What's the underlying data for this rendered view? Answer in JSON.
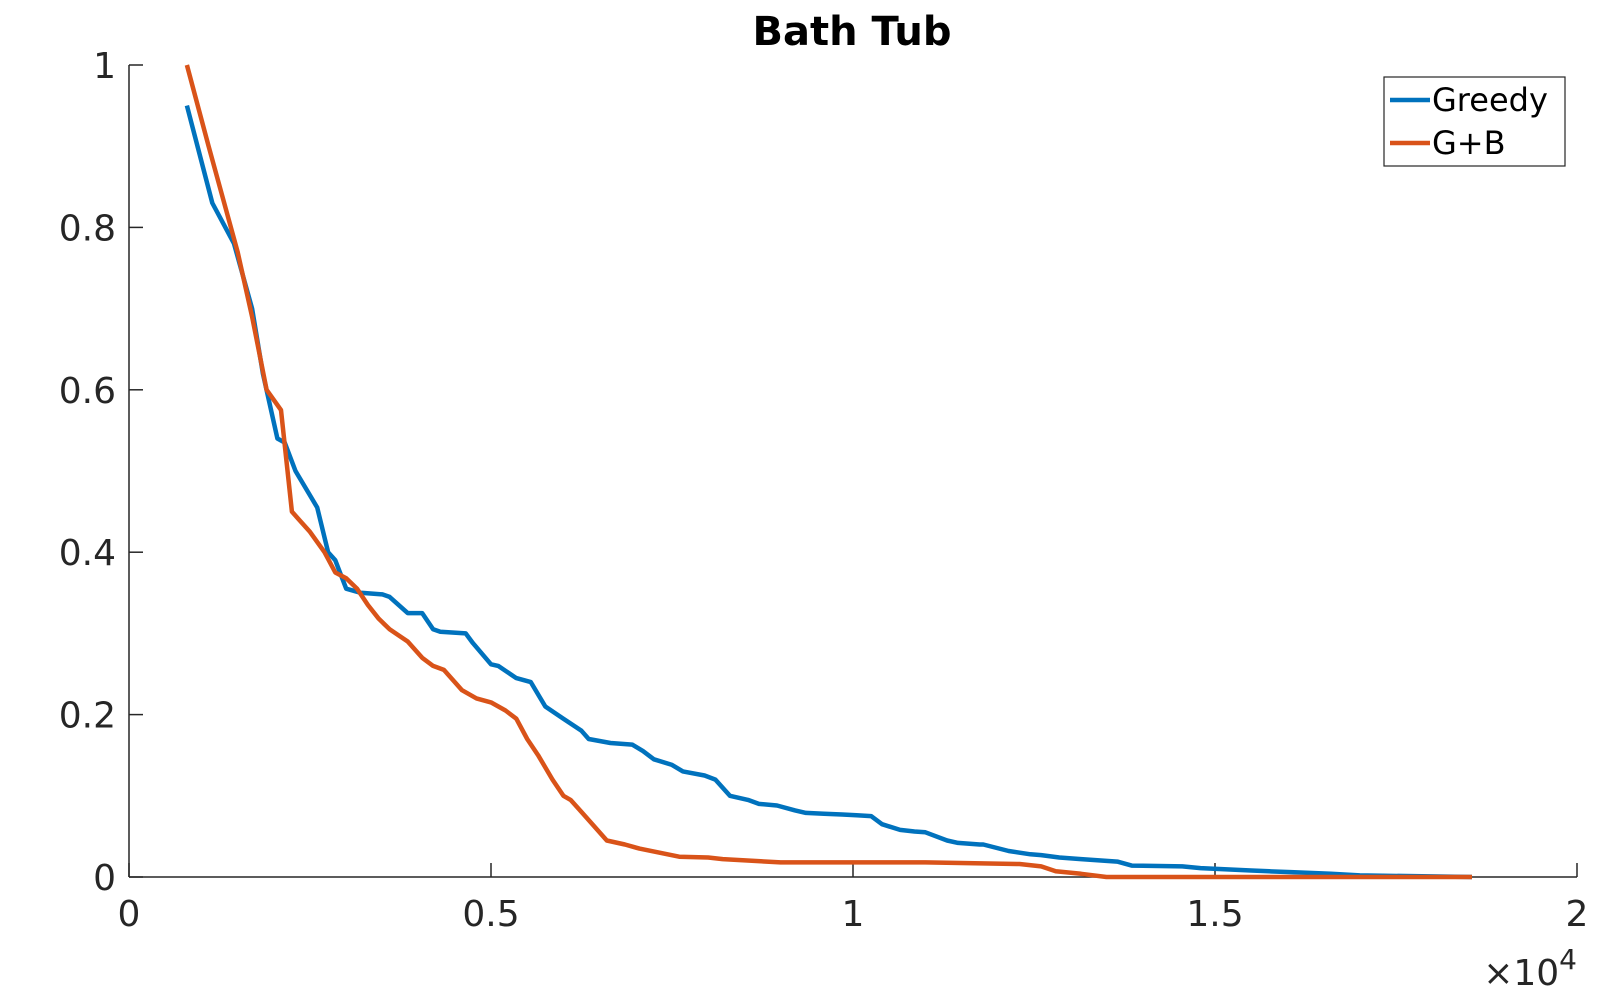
{
  "chart_data": {
    "type": "line",
    "title": "Bath Tub",
    "xlabel": "",
    "ylabel": "",
    "xlim": [
      0,
      20000
    ],
    "ylim": [
      0,
      1
    ],
    "x_ticks": [
      0,
      5000,
      10000,
      15000,
      20000
    ],
    "x_tick_labels": [
      "0",
      "0.5",
      "1",
      "1.5",
      "2"
    ],
    "x_exponent_label": "×10",
    "x_exponent_power": "4",
    "y_ticks": [
      0,
      0.2,
      0.4,
      0.6,
      0.8,
      1
    ],
    "y_tick_labels": [
      "0",
      "0.2",
      "0.4",
      "0.6",
      "0.8",
      "1"
    ],
    "grid": false,
    "legend_position": "top-right",
    "series": [
      {
        "name": "Greedy",
        "color": "#0072BD",
        "x": [
          800,
          1150,
          1450,
          1700,
          1850,
          2050,
          2150,
          2300,
          2500,
          2600,
          2750,
          2850,
          3000,
          3200,
          3500,
          3600,
          3700,
          3850,
          4050,
          4200,
          4300,
          4650,
          4750,
          5000,
          5100,
          5350,
          5550,
          5750,
          6000,
          6250,
          6350,
          6650,
          6950,
          7100,
          7250,
          7500,
          7650,
          7950,
          8100,
          8300,
          8550,
          8700,
          8950,
          9200,
          9350,
          9600,
          9850,
          10050,
          10250,
          10400,
          10650,
          10850,
          11000,
          11300,
          11450,
          11750,
          11800,
          12150,
          12450,
          12600,
          12850,
          13150,
          13650,
          13850,
          14550,
          14800,
          15500,
          15750,
          16050,
          16600,
          17000,
          18550
        ],
        "y": [
          0.95,
          0.83,
          0.78,
          0.7,
          0.62,
          0.54,
          0.535,
          0.5,
          0.47,
          0.455,
          0.4,
          0.39,
          0.355,
          0.35,
          0.348,
          0.345,
          0.337,
          0.325,
          0.325,
          0.305,
          0.302,
          0.3,
          0.288,
          0.262,
          0.26,
          0.245,
          0.24,
          0.21,
          0.195,
          0.18,
          0.17,
          0.165,
          0.163,
          0.155,
          0.145,
          0.138,
          0.13,
          0.125,
          0.12,
          0.1,
          0.095,
          0.09,
          0.088,
          0.082,
          0.079,
          0.078,
          0.077,
          0.076,
          0.075,
          0.065,
          0.058,
          0.056,
          0.055,
          0.045,
          0.042,
          0.04,
          0.04,
          0.032,
          0.028,
          0.027,
          0.024,
          0.022,
          0.019,
          0.014,
          0.013,
          0.011,
          0.008,
          0.007,
          0.006,
          0.004,
          0.002,
          0.0
        ]
      },
      {
        "name": "G+B",
        "color": "#D95319",
        "x": [
          800,
          1100,
          1500,
          1700,
          1900,
          2100,
          2250,
          2350,
          2500,
          2700,
          2850,
          3000,
          3150,
          3300,
          3450,
          3600,
          3850,
          4050,
          4200,
          4350,
          4500,
          4600,
          4800,
          5000,
          5200,
          5350,
          5500,
          5650,
          5850,
          6000,
          6100,
          6250,
          6400,
          6600,
          6850,
          7050,
          7600,
          8000,
          8200,
          9000,
          11000,
          12300,
          12600,
          12800,
          13150,
          13500,
          18550
        ],
        "y": [
          1.0,
          0.9,
          0.77,
          0.69,
          0.6,
          0.575,
          0.45,
          0.44,
          0.425,
          0.4,
          0.375,
          0.368,
          0.355,
          0.335,
          0.318,
          0.305,
          0.29,
          0.27,
          0.26,
          0.255,
          0.24,
          0.23,
          0.22,
          0.215,
          0.205,
          0.195,
          0.17,
          0.15,
          0.12,
          0.1,
          0.095,
          0.08,
          0.065,
          0.045,
          0.04,
          0.035,
          0.025,
          0.024,
          0.022,
          0.018,
          0.018,
          0.016,
          0.013,
          0.007,
          0.004,
          0.0,
          0.0
        ]
      }
    ]
  }
}
